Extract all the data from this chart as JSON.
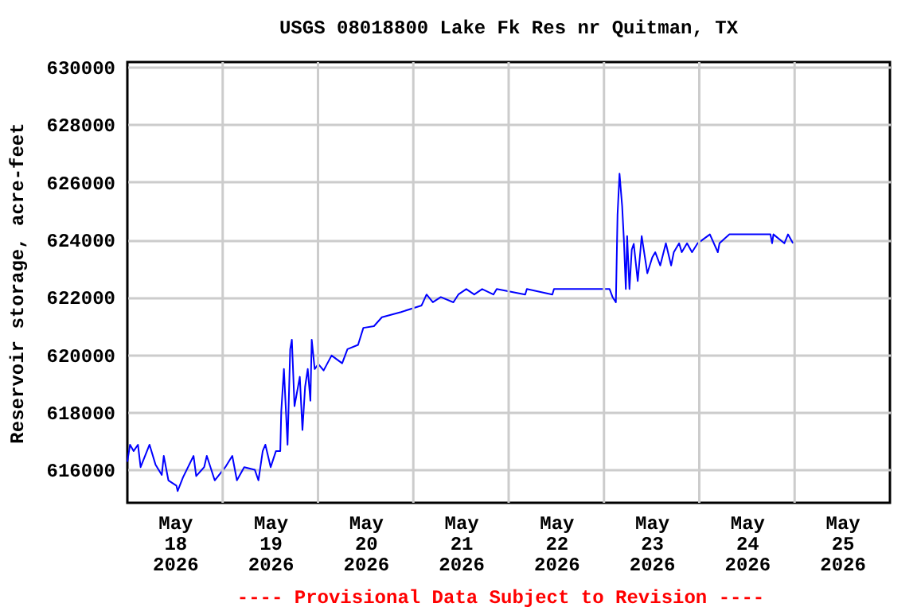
{
  "chart_data": {
    "type": "line",
    "title": "USGS 08018800 Lake Fk Res nr Quitman, TX",
    "ylabel": "Reservoir storage, acre-feet",
    "annotations": [
      "---- Provisional Data Subject to Revision ----"
    ],
    "x": [
      "2026-05-18T00:00",
      "2026-05-18T00:40",
      "2026-05-18T01:35",
      "2026-05-18T02:40",
      "2026-05-18T03:20",
      "2026-05-18T05:35",
      "2026-05-18T07:05",
      "2026-05-18T08:40",
      "2026-05-18T09:10",
      "2026-05-18T10:20",
      "2026-05-18T12:20",
      "2026-05-18T12:40",
      "2026-05-18T14:00",
      "2026-05-18T16:40",
      "2026-05-18T17:20",
      "2026-05-18T19:20",
      "2026-05-18T20:00",
      "2026-05-18T22:00",
      "2026-05-19T00:40",
      "2026-05-19T02:25",
      "2026-05-19T03:35",
      "2026-05-19T05:25",
      "2026-05-19T08:05",
      "2026-05-19T09:00",
      "2026-05-19T10:05",
      "2026-05-19T10:45",
      "2026-05-19T12:05",
      "2026-05-19T13:25",
      "2026-05-19T14:30",
      "2026-05-19T14:45",
      "2026-05-19T15:25",
      "2026-05-19T16:20",
      "2026-05-19T17:00",
      "2026-05-19T17:25",
      "2026-05-19T18:05",
      "2026-05-19T19:25",
      "2026-05-19T20:05",
      "2026-05-19T20:45",
      "2026-05-19T21:25",
      "2026-05-19T22:05",
      "2026-05-19T22:25",
      "2026-05-19T23:10",
      "2026-05-20T00:05",
      "2026-05-20T01:25",
      "2026-05-20T03:25",
      "2026-05-20T06:05",
      "2026-05-20T07:25",
      "2026-05-20T10:05",
      "2026-05-20T11:25",
      "2026-05-20T14:05",
      "2026-05-20T16:05",
      "2026-05-20T20:55",
      "2026-05-21T02:05",
      "2026-05-21T03:20",
      "2026-05-21T04:55",
      "2026-05-21T06:55",
      "2026-05-21T10:05",
      "2026-05-21T11:20",
      "2026-05-21T13:20",
      "2026-05-21T15:20",
      "2026-05-21T17:20",
      "2026-05-21T20:10",
      "2026-05-21T21:00",
      "2026-05-22T04:10",
      "2026-05-22T04:35",
      "2026-05-22T11:00",
      "2026-05-22T11:25",
      "2026-05-23T01:25",
      "2026-05-23T02:10",
      "2026-05-23T03:00",
      "2026-05-23T03:25",
      "2026-05-23T03:55",
      "2026-05-23T04:35",
      "2026-05-23T05:00",
      "2026-05-23T05:30",
      "2026-05-23T05:50",
      "2026-05-23T06:25",
      "2026-05-23T07:00",
      "2026-05-23T07:30",
      "2026-05-23T08:30",
      "2026-05-23T09:30",
      "2026-05-23T10:55",
      "2026-05-23T12:10",
      "2026-05-23T12:55",
      "2026-05-23T14:10",
      "2026-05-23T15:35",
      "2026-05-23T16:55",
      "2026-05-23T17:35",
      "2026-05-23T18:55",
      "2026-05-23T19:35",
      "2026-05-23T20:55",
      "2026-05-23T22:10",
      "2026-05-23T23:35",
      "2026-05-24T02:40",
      "2026-05-24T04:40",
      "2026-05-24T05:05",
      "2026-05-24T07:35",
      "2026-05-24T10:15",
      "2026-05-24T17:55",
      "2026-05-24T18:20",
      "2026-05-24T18:40",
      "2026-05-24T21:25",
      "2026-05-24T22:20",
      "2026-05-24T23:35"
    ],
    "series": [
      {
        "color": "#0000ff",
        "values": [
          616280,
          616870,
          616650,
          616870,
          616090,
          616870,
          616180,
          615820,
          616480,
          615630,
          615450,
          615260,
          615730,
          616480,
          615780,
          616090,
          616480,
          615630,
          616090,
          616480,
          615630,
          616090,
          616000,
          615630,
          616650,
          616870,
          616090,
          616650,
          616650,
          618030,
          619500,
          616870,
          620190,
          620520,
          618210,
          619230,
          617380,
          618880,
          619500,
          618400,
          620520,
          619500,
          619670,
          619450,
          619970,
          619700,
          620190,
          620340,
          620930,
          620990,
          621300,
          621480,
          621710,
          622090,
          621820,
          622000,
          621820,
          622090,
          622280,
          622090,
          622280,
          622090,
          622280,
          622090,
          622280,
          622090,
          622280,
          622280,
          622000,
          621820,
          624860,
          626290,
          625150,
          624030,
          622280,
          624120,
          622280,
          623650,
          623850,
          622560,
          624120,
          622830,
          623380,
          623560,
          623100,
          623870,
          623100,
          623560,
          623870,
          623560,
          623870,
          623560,
          623870,
          624180,
          623560,
          623870,
          624180,
          624180,
          624180,
          623870,
          624180,
          623870,
          624180,
          623870
        ]
      }
    ],
    "xlim": [
      "2026-05-18T00:00",
      "2026-05-26T00:00"
    ],
    "xticks": [
      {
        "value": "2026-05-18T12:00",
        "label": "May\n18\n2026"
      },
      {
        "value": "2026-05-19T12:00",
        "label": "May\n19\n2026"
      },
      {
        "value": "2026-05-20T12:00",
        "label": "May\n20\n2026"
      },
      {
        "value": "2026-05-21T12:00",
        "label": "May\n21\n2026"
      },
      {
        "value": "2026-05-22T12:00",
        "label": "May\n22\n2026"
      },
      {
        "value": "2026-05-23T12:00",
        "label": "May\n23\n2026"
      },
      {
        "value": "2026-05-24T12:00",
        "label": "May\n24\n2026"
      },
      {
        "value": "2026-05-25T12:00",
        "label": "May\n25\n2026"
      },
      {
        "value": "2026-05-19T00:00",
        "label": null
      },
      {
        "value": "2026-05-20T00:00",
        "label": null
      },
      {
        "value": "2026-05-21T00:00",
        "label": null
      },
      {
        "value": "2026-05-22T00:00",
        "label": null
      },
      {
        "value": "2026-05-23T00:00",
        "label": null
      },
      {
        "value": "2026-05-24T00:00",
        "label": null
      },
      {
        "value": "2026-05-25T00:00",
        "label": null
      }
    ],
    "ylim": [
      614850,
      630170
    ],
    "yticks": [
      616000,
      618000,
      620000,
      622000,
      624000,
      626000,
      628000,
      630000
    ],
    "grid": true,
    "line_style": "solid"
  }
}
